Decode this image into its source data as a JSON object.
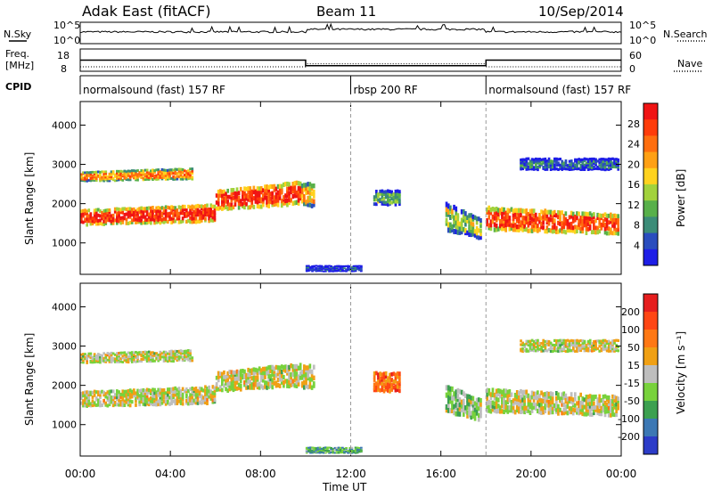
{
  "header": {
    "station": "Adak East (fitACF)",
    "beam": "Beam 11",
    "date": "10/Sep/2014"
  },
  "nsky_panel": {
    "left_label": "N.Sky",
    "right_label": "N.Search",
    "ticks_left": [
      "10^5",
      "10^0"
    ],
    "ticks_right": [
      "10^5",
      "10^0"
    ]
  },
  "freq_panel": {
    "left_label_1": "Freq.",
    "left_label_2": "[MHz]",
    "right_label": "Nave",
    "ticks_left": [
      "18",
      "8"
    ],
    "ticks_right": [
      "60",
      "0"
    ]
  },
  "cpid_panel": {
    "label": "CPID",
    "segments": [
      {
        "text": "normalsound (fast) 157 RF",
        "start_h": 0,
        "end_h": 12
      },
      {
        "text": "rbsp 200 RF",
        "start_h": 12,
        "end_h": 18
      },
      {
        "text": "normalsound (fast) 157 RF",
        "start_h": 18,
        "end_h": 24
      }
    ]
  },
  "chart_data": [
    {
      "type": "heatmap",
      "name": "power",
      "ylabel": "Slant Range [km]",
      "xlabel": "Time UT",
      "ylim": [
        200,
        4600
      ],
      "yticks": [
        1000,
        2000,
        3000,
        4000
      ],
      "xticks": [
        "00:00",
        "04:00",
        "08:00",
        "12:00",
        "16:00",
        "20:00",
        "00:00"
      ],
      "colorbar_label": "Power [dB]",
      "colorbar_ticks": [
        "4",
        "8",
        "12",
        "16",
        "20",
        "24",
        "28"
      ],
      "colorbar_colors": [
        "#1e1ee6",
        "#2a4dbe",
        "#3c8c78",
        "#58b04a",
        "#a2d23c",
        "#ffd21e",
        "#ffa014",
        "#ff6e0f",
        "#ff3c0a",
        "#f01414"
      ],
      "bands": [
        {
          "t0": 0.0,
          "t1": 6.0,
          "r0": 1500,
          "r1": 1900,
          "r1_end": 2050,
          "level": 0.9
        },
        {
          "t0": 0.0,
          "t1": 5.0,
          "r0": 2600,
          "r1": 2850,
          "r1_end": 2950,
          "level": 0.7
        },
        {
          "t0": 6.0,
          "t1": 9.8,
          "r0": 1900,
          "r1": 2400,
          "r1_end": 2650,
          "level": 0.9
        },
        {
          "t0": 9.8,
          "t1": 10.4,
          "r0": 2000,
          "r1": 2600,
          "r1_end": 2600,
          "level": 0.6
        },
        {
          "t0": 13.0,
          "t1": 14.2,
          "r0": 2000,
          "r1": 2400,
          "r1_end": 2400,
          "level": 0.35
        },
        {
          "t0": 16.2,
          "t1": 17.8,
          "r0": 1400,
          "r1": 2100,
          "r1_end": 1700,
          "level": 0.45
        },
        {
          "t0": 18.0,
          "t1": 23.9,
          "r0": 1400,
          "r1": 2000,
          "r1_end": 1800,
          "level": 0.85
        },
        {
          "t0": 19.5,
          "t1": 23.9,
          "r0": 2900,
          "r1": 3200,
          "r1_end": 3200,
          "level": 0.2
        },
        {
          "t0": 10.0,
          "t1": 12.5,
          "r0": 300,
          "r1": 450,
          "r1_end": 450,
          "level": 0.1
        }
      ]
    },
    {
      "type": "heatmap",
      "name": "velocity",
      "ylabel": "Slant Range [km]",
      "xlabel": "Time UT",
      "ylim": [
        200,
        4600
      ],
      "yticks": [
        1000,
        2000,
        3000,
        4000
      ],
      "xticks": [
        "00:00",
        "04:00",
        "08:00",
        "12:00",
        "16:00",
        "20:00",
        "00:00"
      ],
      "colorbar_label": "Velocity [m s⁻¹]",
      "colorbar_ticks": [
        "200",
        "100",
        "50",
        "15",
        "-15",
        "-50",
        "-100",
        "-200"
      ],
      "colorbar_colors": [
        "#2c3cc8",
        "#3c78b4",
        "#3ca050",
        "#78d23c",
        "#bebebe",
        "#f0a014",
        "#ff7814",
        "#ff4614",
        "#e61e1e"
      ],
      "bands": [
        {
          "t0": 0.0,
          "t1": 6.0,
          "r0": 1500,
          "r1": 1900,
          "r1_end": 2050,
          "level": 0.5
        },
        {
          "t0": 0.0,
          "t1": 5.0,
          "r0": 2600,
          "r1": 2850,
          "r1_end": 2950,
          "level": 0.5
        },
        {
          "t0": 6.0,
          "t1": 9.8,
          "r0": 1900,
          "r1": 2400,
          "r1_end": 2650,
          "level": 0.5
        },
        {
          "t0": 9.8,
          "t1": 10.4,
          "r0": 2000,
          "r1": 2600,
          "r1_end": 2600,
          "level": 0.5
        },
        {
          "t0": 13.0,
          "t1": 14.2,
          "r0": 1900,
          "r1": 2400,
          "r1_end": 2400,
          "level": 0.75
        },
        {
          "t0": 16.2,
          "t1": 17.8,
          "r0": 1400,
          "r1": 2100,
          "r1_end": 1700,
          "level": 0.4
        },
        {
          "t0": 18.0,
          "t1": 23.9,
          "r0": 1400,
          "r1": 2000,
          "r1_end": 1800,
          "level": 0.5
        },
        {
          "t0": 19.5,
          "t1": 23.9,
          "r0": 2900,
          "r1": 3200,
          "r1_end": 3200,
          "level": 0.5
        },
        {
          "t0": 10.0,
          "t1": 12.5,
          "r0": 300,
          "r1": 450,
          "r1_end": 450,
          "level": 0.3
        }
      ]
    }
  ],
  "series_levels": {
    "nsky_level": 0.55,
    "freq_mhz": [
      {
        "start_h": 0,
        "end_h": 10,
        "value": 13
      },
      {
        "start_h": 10,
        "end_h": 18,
        "value": 10.5
      },
      {
        "start_h": 18,
        "end_h": 24,
        "value": 13
      }
    ],
    "nave": [
      {
        "start_h": 0,
        "end_h": 10,
        "value": 12
      },
      {
        "start_h": 10,
        "end_h": 18,
        "value": 20
      },
      {
        "start_h": 18,
        "end_h": 24,
        "value": 12
      }
    ]
  }
}
